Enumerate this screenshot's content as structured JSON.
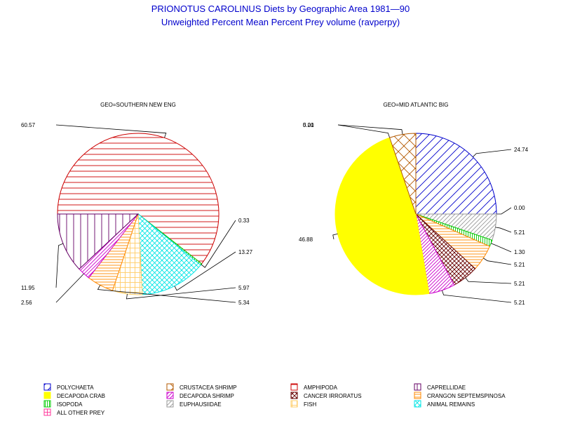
{
  "chart_data": {
    "type": "pie",
    "title": "PRIONOTUS CAROLINUS Diets by Geographic Area 1981—90",
    "subtitle": "Unweighted Percent Mean Percent Prey  volume (ravperpy)",
    "categories": [
      "POLYCHAETA",
      "CRUSTACEA SHRIMP",
      "AMPHIPODA",
      "CAPRELLIDAE",
      "DECAPODA CRAB",
      "DECAPODA SHRIMP",
      "CANCER IRRORATUS",
      "CRANGON SEPTEMSPINOSA",
      "ISOPODA",
      "EUPHAUSIIDAE",
      "FISH",
      "ANIMAL REMAINS",
      "ALL OTHER PREY"
    ],
    "colors": {
      "POLYCHAETA": "#0000cc",
      "CRUSTACEA SHRIMP": "#b35900",
      "AMPHIPODA": "#cc0000",
      "CAPRELLIDAE": "#660066",
      "DECAPODA CRAB": "#ffff00",
      "DECAPODA SHRIMP": "#cc00cc",
      "CANCER IRRORATUS": "#660000",
      "CRANGON SEPTEMSPINOSA": "#ff8800",
      "ISOPODA": "#00cc00",
      "EUPHAUSIIDAE": "#999999",
      "FISH": "#ffcc66",
      "ANIMAL REMAINS": "#00e5e5",
      "ALL OTHER PREY": "#ff3399"
    },
    "pies": [
      {
        "title": "GEO=SOUTHERN NEW ENG",
        "slices": [
          {
            "category": "AMPHIPODA",
            "value": 60.57,
            "label": "60.57"
          },
          {
            "category": "ISOPODA",
            "value": 0.33,
            "label": "0.33"
          },
          {
            "category": "ANIMAL REMAINS",
            "value": 13.27,
            "label": "13.27"
          },
          {
            "category": "FISH",
            "value": 5.97,
            "label": "5.97"
          },
          {
            "category": "CRANGON SEPTEMSPINOSA",
            "value": 5.34,
            "label": "5.34"
          },
          {
            "category": "DECAPODA SHRIMP",
            "value": 2.56,
            "label": "2.56"
          },
          {
            "category": "CAPRELLIDAE",
            "value": 11.95,
            "label": "11.95"
          }
        ]
      },
      {
        "title": "GEO=MID ATLANTIC BIG",
        "slices": [
          {
            "category": "POLYCHAETA",
            "value": 24.74,
            "label": "24.74"
          },
          {
            "category": "AMPHIPODA",
            "value": 0.0,
            "label": "0.00"
          },
          {
            "category": "EUPHAUSIIDAE",
            "value": 5.21,
            "label": "5.21"
          },
          {
            "category": "ISOPODA",
            "value": 1.3,
            "label": "1.30"
          },
          {
            "category": "CRANGON SEPTEMSPINOSA",
            "value": 5.21,
            "label": "5.21"
          },
          {
            "category": "CANCER IRRORATUS",
            "value": 5.21,
            "label": "5.21"
          },
          {
            "category": "DECAPODA SHRIMP",
            "value": 5.21,
            "label": "5.21"
          },
          {
            "category": "DECAPODA CRAB",
            "value": 46.88,
            "label": "46.88"
          },
          {
            "category": "ALL OTHER PREY",
            "value": 0.0,
            "label": "0.00"
          },
          {
            "category": "CRUSTACEA SHRIMP",
            "value": 5.21,
            "label": "5.21"
          }
        ]
      }
    ],
    "legend_placement": "bottom"
  }
}
